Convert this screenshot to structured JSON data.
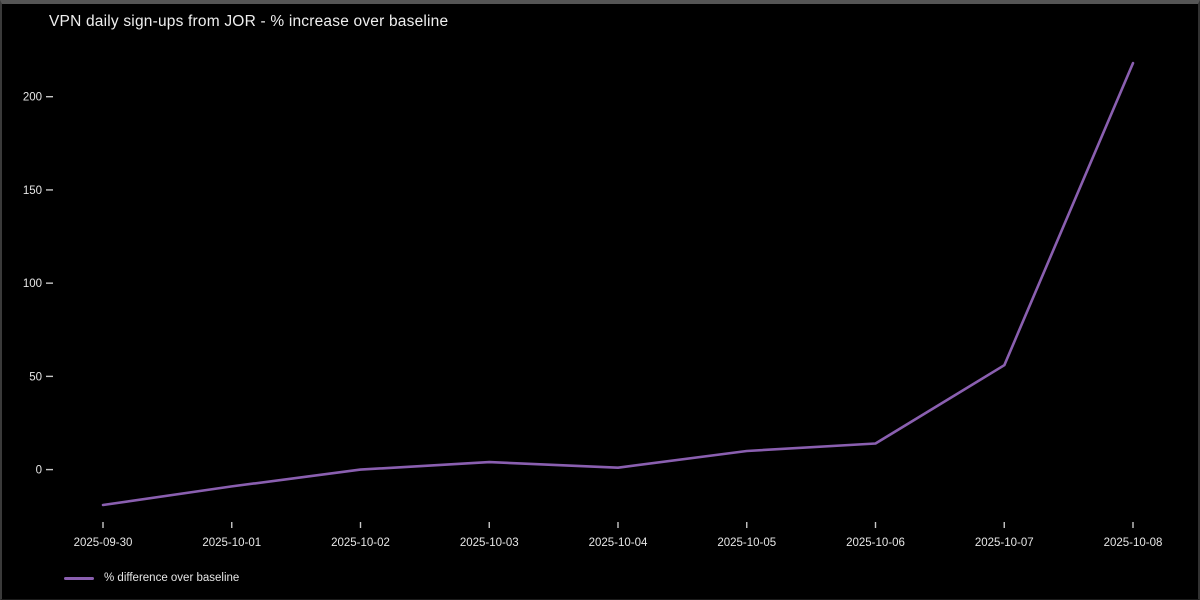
{
  "window": {
    "title": "VPN daily sign-ups from JOR - % increase over baseline"
  },
  "chart_data": {
    "type": "line",
    "title": "VPN daily sign-ups from JOR - % increase over baseline",
    "x": [
      "2025-09-30",
      "2025-10-01",
      "2025-10-02",
      "2025-10-03",
      "2025-10-04",
      "2025-10-05",
      "2025-10-06",
      "2025-10-07",
      "2025-10-08"
    ],
    "series": [
      {
        "name": "% difference over baseline",
        "values": [
          -19,
          -9,
          0,
          4,
          1,
          10,
          14,
          56,
          218
        ]
      }
    ],
    "xlabel": "",
    "ylabel": "",
    "yticks": [
      0,
      50,
      100,
      150,
      200
    ],
    "ylim": [
      -35,
      240
    ],
    "grid": false,
    "legend": {
      "label": "% difference over baseline",
      "position": "lower-left"
    },
    "colors": {
      "line": "#8a5fb0",
      "background": "#000000",
      "text": "#e6e6e6",
      "tick": "#c8c8c8"
    }
  }
}
